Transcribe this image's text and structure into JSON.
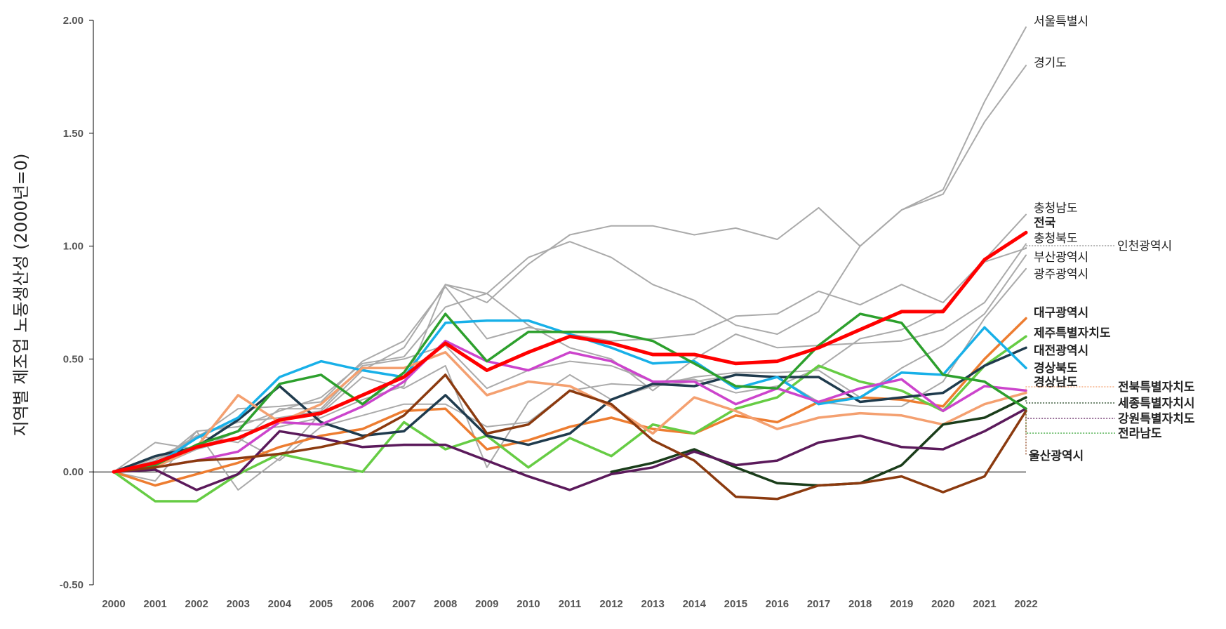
{
  "chart_data": {
    "type": "line",
    "ylabel": "지역별 제조업 노동생산성 (2000년=0)",
    "xlabel": "",
    "ylim": [
      -0.5,
      2.0
    ],
    "yticks": [
      -0.5,
      0.0,
      0.5,
      1.0,
      1.5,
      2.0
    ],
    "ytick_labels": [
      "-0.50",
      "0.00",
      "0.50",
      "1.00",
      "1.50",
      "2.00"
    ],
    "x": [
      "2000",
      "2001",
      "2002",
      "2003",
      "2004",
      "2005",
      "2006",
      "2007",
      "2008",
      "2009",
      "2010",
      "2011",
      "2012",
      "2013",
      "2014",
      "2015",
      "2016",
      "2017",
      "2018",
      "2019",
      "2020",
      "2021",
      "2022"
    ],
    "grid": false,
    "series": [
      {
        "name": "서울특별시",
        "color": "#aaaaaa",
        "values": [
          0,
          0.13,
          0.1,
          0.18,
          0.2,
          0.24,
          0.32,
          0.38,
          0.83,
          0.75,
          0.92,
          1.05,
          1.09,
          1.09,
          1.05,
          1.08,
          1.03,
          1.17,
          1.0,
          1.16,
          1.25,
          1.64,
          1.97
        ]
      },
      {
        "name": "경기도",
        "color": "#aaaaaa",
        "values": [
          0,
          0.05,
          0.16,
          0.22,
          0.24,
          0.27,
          0.45,
          0.55,
          0.83,
          0.79,
          0.95,
          1.02,
          0.95,
          0.83,
          0.76,
          0.65,
          0.61,
          0.71,
          1.0,
          1.16,
          1.23,
          1.55,
          1.8
        ]
      },
      {
        "name": "충청남도",
        "color": "#aaaaaa",
        "values": [
          0,
          0.06,
          0.15,
          0.28,
          0.29,
          0.31,
          0.49,
          0.58,
          0.82,
          0.59,
          0.64,
          0.61,
          0.58,
          0.59,
          0.61,
          0.69,
          0.7,
          0.8,
          0.74,
          0.83,
          0.75,
          0.94,
          1.14
        ]
      },
      {
        "name": "충청북도",
        "color": "#aaaaaa",
        "values": [
          0,
          0.03,
          0.18,
          0.2,
          0.27,
          0.33,
          0.48,
          0.51,
          0.73,
          0.79,
          0.65,
          0.55,
          0.5,
          0.36,
          0.5,
          0.61,
          0.55,
          0.56,
          0.57,
          0.58,
          0.63,
          0.75,
          1.01
        ]
      },
      {
        "name": "인천광역시",
        "color": "#aaaaaa",
        "values": [
          0,
          0.04,
          0.16,
          0.13,
          0.28,
          0.28,
          0.47,
          0.5,
          0.56,
          0.37,
          0.45,
          0.49,
          0.47,
          0.4,
          0.41,
          0.35,
          0.38,
          0.46,
          0.59,
          0.63,
          0.72,
          0.93,
          0.99
        ]
      },
      {
        "name": "부산광역시",
        "color": "#aaaaaa",
        "values": [
          0,
          -0.04,
          0.18,
          -0.08,
          0.06,
          0.26,
          0.42,
          0.37,
          0.47,
          0.02,
          0.31,
          0.43,
          0.32,
          0.38,
          0.42,
          0.44,
          0.44,
          0.45,
          0.33,
          0.46,
          0.56,
          0.7,
          0.96
        ]
      },
      {
        "name": "광주광역시",
        "color": "#aaaaaa",
        "values": [
          0,
          0.02,
          0.1,
          0.15,
          0.05,
          0.2,
          0.25,
          0.3,
          0.3,
          0.2,
          0.22,
          0.36,
          0.39,
          0.38,
          0.4,
          0.43,
          0.42,
          0.31,
          0.29,
          0.29,
          0.4,
          0.68,
          0.9
        ]
      },
      {
        "name": "전국",
        "color": "#ff0000",
        "width": 5,
        "values": [
          0,
          0.04,
          0.11,
          0.15,
          0.23,
          0.26,
          0.34,
          0.42,
          0.57,
          0.45,
          0.53,
          0.6,
          0.57,
          0.52,
          0.52,
          0.48,
          0.49,
          0.55,
          0.63,
          0.71,
          0.71,
          0.94,
          1.06
        ]
      },
      {
        "name": "대구광역시",
        "color": "#ed7d31",
        "values": [
          0,
          -0.06,
          -0.01,
          0.04,
          0.11,
          0.16,
          0.19,
          0.27,
          0.28,
          0.1,
          0.14,
          0.2,
          0.24,
          0.19,
          0.17,
          0.25,
          0.22,
          0.31,
          0.33,
          0.32,
          0.29,
          0.5,
          0.68
        ]
      },
      {
        "name": "제주특별자치도",
        "color": "#66cc44",
        "values": [
          0,
          -0.13,
          -0.13,
          -0.01,
          0.08,
          0.04,
          0.0,
          0.22,
          0.1,
          0.16,
          0.02,
          0.15,
          0.07,
          0.21,
          0.17,
          0.28,
          0.33,
          0.47,
          0.4,
          0.36,
          0.27,
          0.47,
          0.6
        ]
      },
      {
        "name": "대전광역시",
        "color": "#1f3b4d",
        "values": [
          0,
          0.07,
          0.11,
          0.23,
          0.38,
          0.22,
          0.16,
          0.18,
          0.34,
          0.16,
          0.12,
          0.17,
          0.32,
          0.39,
          0.38,
          0.43,
          0.42,
          0.42,
          0.31,
          0.33,
          0.35,
          0.47,
          0.55
        ]
      },
      {
        "name": "경상북도",
        "color": "#18b0e8",
        "values": [
          0,
          0.03,
          0.15,
          0.24,
          0.42,
          0.49,
          0.45,
          0.42,
          0.66,
          0.67,
          0.67,
          0.61,
          0.55,
          0.48,
          0.49,
          0.37,
          0.42,
          0.3,
          0.33,
          0.44,
          0.43,
          0.64,
          0.46
        ]
      },
      {
        "name": "경상남도",
        "color": "#cc44cc",
        "values": [
          0,
          0.02,
          0.05,
          0.09,
          0.22,
          0.21,
          0.29,
          0.4,
          0.58,
          0.49,
          0.45,
          0.53,
          0.49,
          0.4,
          0.4,
          0.3,
          0.37,
          0.31,
          0.37,
          0.41,
          0.27,
          0.38,
          0.36
        ]
      },
      {
        "name": "전북특별자치도",
        "color": "#f4a070",
        "values": [
          0,
          0.02,
          0.11,
          0.34,
          0.22,
          0.3,
          0.46,
          0.46,
          0.53,
          0.34,
          0.4,
          0.38,
          0.29,
          0.17,
          0.33,
          0.27,
          0.19,
          0.24,
          0.26,
          0.25,
          0.21,
          0.3,
          0.35
        ]
      },
      {
        "name": "세종특별자치시",
        "color": "#1a3d1a",
        "values": [
          null,
          null,
          null,
          null,
          null,
          null,
          null,
          null,
          null,
          null,
          null,
          null,
          0.0,
          0.04,
          0.1,
          0.02,
          -0.05,
          -0.06,
          -0.05,
          0.03,
          0.21,
          0.24,
          0.33
        ]
      },
      {
        "name": "강원특별자치도",
        "color": "#5b1a5b",
        "values": [
          0,
          0.01,
          -0.08,
          -0.01,
          0.18,
          0.15,
          0.11,
          0.12,
          0.12,
          0.05,
          -0.02,
          -0.08,
          -0.01,
          0.02,
          0.09,
          0.03,
          0.05,
          0.13,
          0.16,
          0.11,
          0.1,
          0.18,
          0.28
        ]
      },
      {
        "name": "전라남도",
        "color": "#2da02d",
        "values": [
          0,
          0.03,
          0.12,
          0.18,
          0.39,
          0.43,
          0.3,
          0.44,
          0.7,
          0.49,
          0.62,
          0.62,
          0.62,
          0.58,
          0.48,
          0.38,
          0.37,
          0.56,
          0.7,
          0.66,
          0.43,
          0.4,
          0.28
        ]
      },
      {
        "name": "울산광역시",
        "color": "#8b3a0f",
        "values": [
          0,
          0.02,
          0.05,
          0.06,
          0.08,
          0.11,
          0.15,
          0.25,
          0.43,
          0.17,
          0.21,
          0.36,
          0.3,
          0.14,
          0.05,
          -0.11,
          -0.12,
          -0.06,
          -0.05,
          -0.02,
          -0.09,
          -0.02,
          0.27
        ]
      }
    ],
    "labels": [
      {
        "text": "서울특별시",
        "series": "서울특별시",
        "bold": false,
        "color": "#222222"
      },
      {
        "text": "경기도",
        "series": "경기도",
        "bold": false,
        "color": "#222222"
      },
      {
        "text": "충청남도",
        "series": "충청남도",
        "bold": false,
        "color": "#222222"
      },
      {
        "text": "전국",
        "series": "전국",
        "bold": true,
        "color": "#ee0000"
      },
      {
        "text": "충청북도",
        "series": "충청북도",
        "bold": false,
        "color": "#222222"
      },
      {
        "text": "인천광역시",
        "series": "인천광역시",
        "bold": false,
        "color": "#222222"
      },
      {
        "text": "부산광역시",
        "series": "부산광역시",
        "bold": false,
        "color": "#222222"
      },
      {
        "text": "광주광역시",
        "series": "광주광역시",
        "bold": false,
        "color": "#222222"
      },
      {
        "text": "대구광역시",
        "series": "대구광역시",
        "bold": true,
        "color": "#222222"
      },
      {
        "text": "제주특별자치도",
        "series": "제주특별자치도",
        "bold": true,
        "color": "#222222"
      },
      {
        "text": "대전광역시",
        "series": "대전광역시",
        "bold": true,
        "color": "#222222"
      },
      {
        "text": "경상북도",
        "series": "경상북도",
        "bold": true,
        "color": "#222222"
      },
      {
        "text": "경상남도",
        "series": "경상남도",
        "bold": true,
        "color": "#222222"
      },
      {
        "text": "전북특별자치도",
        "series": "전북특별자치도",
        "bold": true,
        "color": "#222222"
      },
      {
        "text": "세종특별자치시",
        "series": "세종특별자치시",
        "bold": true,
        "color": "#222222"
      },
      {
        "text": "강원특별자치도",
        "series": "강원특별자치도",
        "bold": true,
        "color": "#222222"
      },
      {
        "text": "전라남도",
        "series": "전라남도",
        "bold": true,
        "color": "#222222"
      },
      {
        "text": "울산광역시",
        "series": "울산광역시",
        "bold": true,
        "color": "#222222"
      }
    ]
  }
}
